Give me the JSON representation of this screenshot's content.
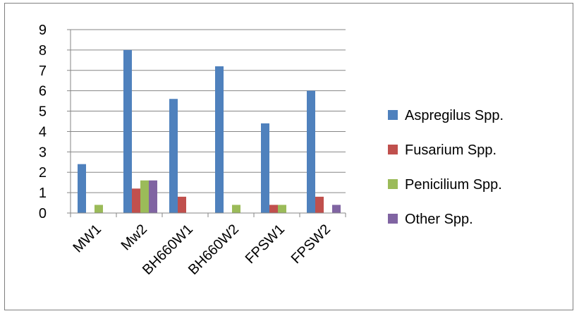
{
  "chart_data": {
    "type": "bar",
    "categories": [
      "MW1",
      "Mw2",
      "BH660W1",
      "BH660W2",
      "FPSW1",
      "FPSW2"
    ],
    "series": [
      {
        "name": "Aspregilus Spp.",
        "color": "#4F81BD",
        "values": [
          2.4,
          8.0,
          5.6,
          7.2,
          4.4,
          6.0
        ]
      },
      {
        "name": "Fusarium Spp.",
        "color": "#C0504D",
        "values": [
          0,
          1.2,
          0.8,
          0,
          0.4,
          0.8
        ]
      },
      {
        "name": "Penicilium Spp.",
        "color": "#9BBB59",
        "values": [
          0.4,
          1.6,
          0,
          0.4,
          0.4,
          0
        ]
      },
      {
        "name": "Other Spp.",
        "color": "#8064A2",
        "values": [
          0,
          1.6,
          0,
          0,
          0,
          0.4
        ]
      }
    ],
    "ylim": [
      0,
      9
    ],
    "yticks": [
      "0",
      "1",
      "2",
      "3",
      "4",
      "5",
      "6",
      "7",
      "8",
      "9"
    ],
    "grid": true,
    "legend": "right"
  }
}
